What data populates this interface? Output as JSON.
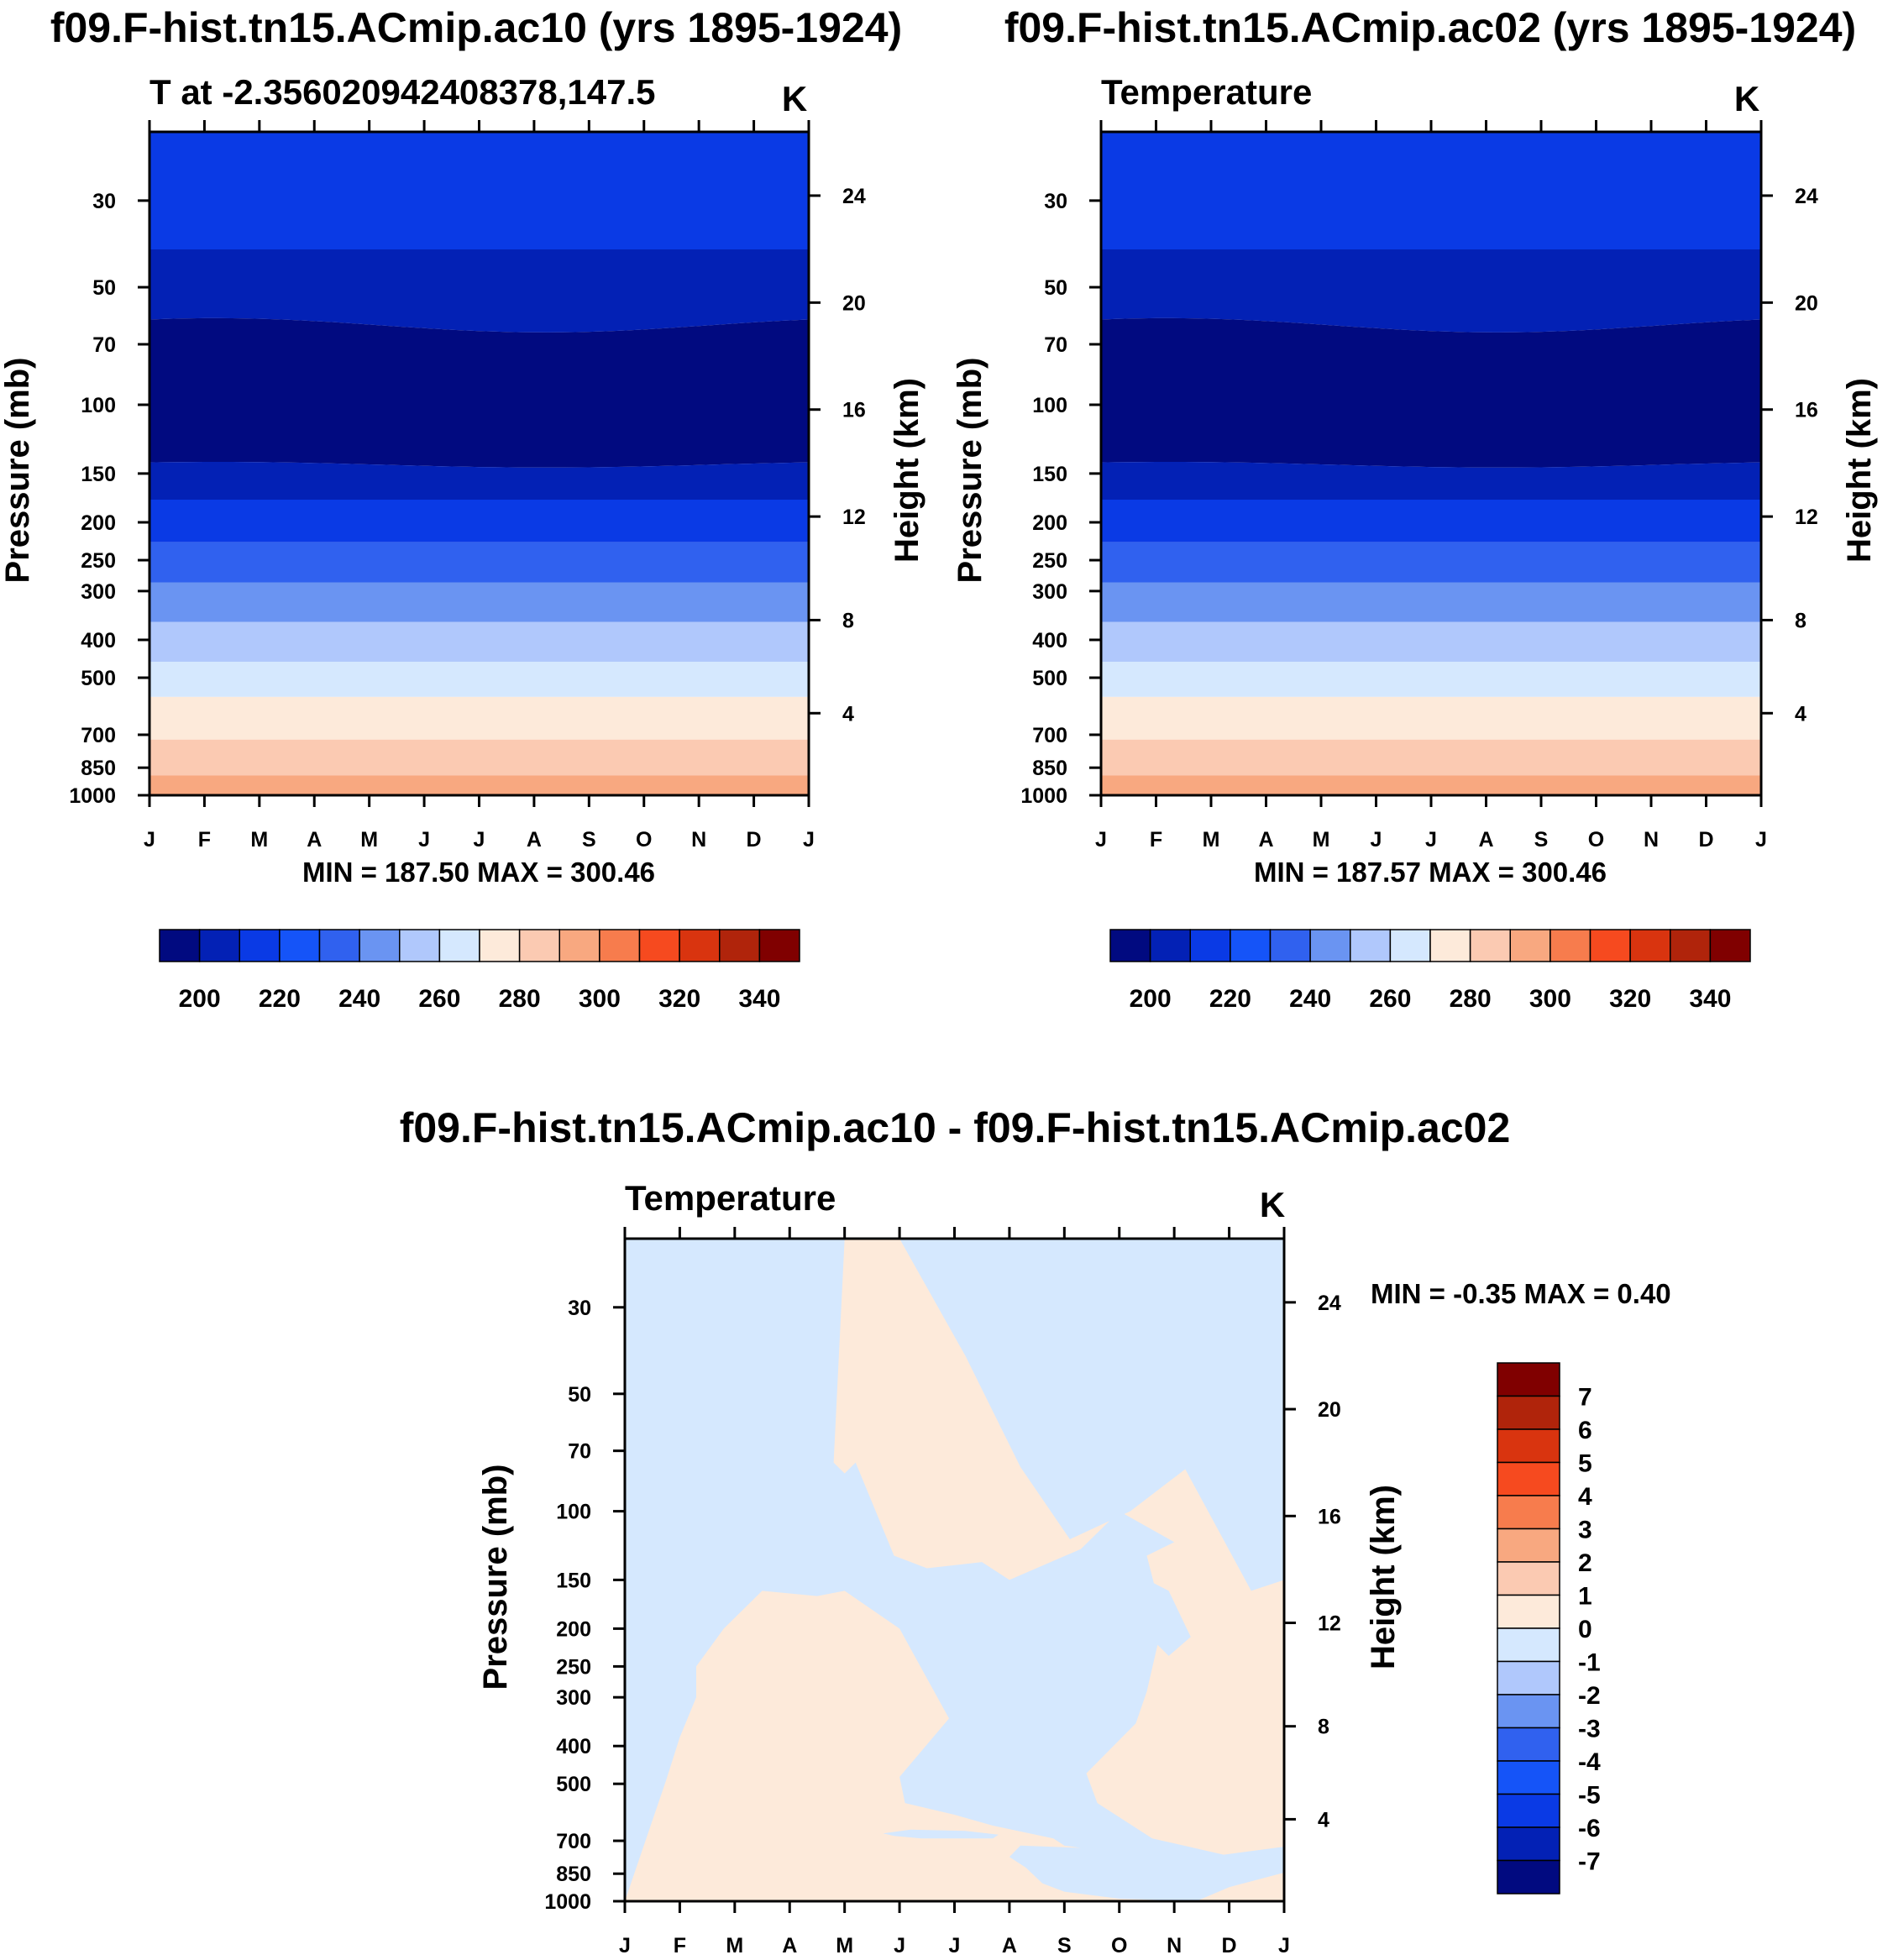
{
  "chart_data": [
    {
      "type": "heatmap",
      "panel": "top-left",
      "title": "f09.F-hist.tn15.ACmip.ac10 (yrs 1895-1924)",
      "subtitle": "T at -2.356020942408378,147.5",
      "units": "K",
      "xlabel": "",
      "ylabel": "Pressure (mb)",
      "y2label": "Height (km)",
      "x_ticks": [
        "J",
        "F",
        "M",
        "A",
        "M",
        "J",
        "J",
        "A",
        "S",
        "O",
        "N",
        "D",
        "J"
      ],
      "y_ticks": [
        "30",
        "50",
        "70",
        "100",
        "150",
        "200",
        "250",
        "300",
        "400",
        "500",
        "700",
        "850",
        "1000"
      ],
      "y_tick_values": [
        30,
        50,
        70,
        100,
        150,
        200,
        250,
        300,
        400,
        500,
        700,
        850,
        1000
      ],
      "y2_ticks": [
        "24",
        "20",
        "16",
        "12",
        "8",
        "4"
      ],
      "y2_tick_values": [
        24,
        20,
        16,
        12,
        8,
        4
      ],
      "ylim": [
        20,
        1000
      ],
      "stats": "MIN = 187.50 MAX = 300.46",
      "levels_mb": [
        20,
        40,
        60,
        140,
        175,
        225,
        285,
        360,
        455,
        560,
        720,
        890,
        1000
      ],
      "band_colors": [
        "#0a3ae5",
        "#0321b5",
        "#010a80",
        "#0321b5",
        "#0a3ae5",
        "#3061ef",
        "#6a94f2",
        "#b0c8fc",
        "#d5e8fe",
        "#fdeada",
        "#fbcab2",
        "#f8a880",
        "#ffffff"
      ],
      "boundary_mod": [
        0,
        0,
        1,
        0.4,
        0,
        0,
        0,
        0,
        0,
        0,
        0,
        0,
        0
      ]
    },
    {
      "type": "heatmap",
      "panel": "top-right",
      "title": "f09.F-hist.tn15.ACmip.ac02 (yrs 1895-1924)",
      "subtitle": "Temperature",
      "units": "K",
      "xlabel": "",
      "ylabel": "Pressure (mb)",
      "y2label": "Height (km)",
      "x_ticks": [
        "J",
        "F",
        "M",
        "A",
        "M",
        "J",
        "J",
        "A",
        "S",
        "O",
        "N",
        "D",
        "J"
      ],
      "y_ticks": [
        "30",
        "50",
        "70",
        "100",
        "150",
        "200",
        "250",
        "300",
        "400",
        "500",
        "700",
        "850",
        "1000"
      ],
      "y_tick_values": [
        30,
        50,
        70,
        100,
        150,
        200,
        250,
        300,
        400,
        500,
        700,
        850,
        1000
      ],
      "y2_ticks": [
        "24",
        "20",
        "16",
        "12",
        "8",
        "4"
      ],
      "y2_tick_values": [
        24,
        20,
        16,
        12,
        8,
        4
      ],
      "ylim": [
        20,
        1000
      ],
      "stats": "MIN = 187.57 MAX = 300.46",
      "levels_mb": [
        20,
        40,
        60,
        140,
        175,
        225,
        285,
        360,
        455,
        560,
        720,
        890,
        1000
      ],
      "band_colors": [
        "#0a3ae5",
        "#0321b5",
        "#010a80",
        "#0321b5",
        "#0a3ae5",
        "#3061ef",
        "#6a94f2",
        "#b0c8fc",
        "#d5e8fe",
        "#fdeada",
        "#fbcab2",
        "#f8a880",
        "#ffffff"
      ],
      "boundary_mod": [
        0,
        0,
        1,
        0.4,
        0,
        0,
        0,
        0,
        0,
        0,
        0,
        0,
        0
      ]
    },
    {
      "type": "heatmap",
      "panel": "bottom",
      "title": "f09.F-hist.tn15.ACmip.ac10 - f09.F-hist.tn15.ACmip.ac02",
      "subtitle": "Temperature",
      "units": "K",
      "xlabel": "",
      "ylabel": "Pressure (mb)",
      "y2label": "Height (km)",
      "x_ticks": [
        "J",
        "F",
        "M",
        "A",
        "M",
        "J",
        "J",
        "A",
        "S",
        "O",
        "N",
        "D",
        "J"
      ],
      "y_ticks": [
        "30",
        "50",
        "70",
        "100",
        "150",
        "200",
        "250",
        "300",
        "400",
        "500",
        "700",
        "850",
        "1000"
      ],
      "y_tick_values": [
        30,
        50,
        70,
        100,
        150,
        200,
        250,
        300,
        400,
        500,
        700,
        850,
        1000
      ],
      "y2_ticks": [
        "24",
        "20",
        "16",
        "12",
        "8",
        "4"
      ],
      "y2_tick_values": [
        24,
        20,
        16,
        12,
        8,
        4
      ],
      "ylim": [
        20,
        1000
      ],
      "stats": "MIN =  -0.35 MAX =   0.40",
      "background_value_class": "0 to 1",
      "diff_regions": [
        {
          "value_class": "-1 to 0",
          "months": [
            0,
            0.75,
            1,
            1.3,
            1.3,
            1.8,
            2.5,
            3.5,
            4,
            5,
            5.9,
            5,
            5.1,
            6,
            6.7,
            7.8,
            8,
            8.3,
            7.2,
            7,
            7.3,
            7.6,
            8,
            9,
            10.4,
            11,
            12,
            12,
            10.9,
            9.6,
            8.6,
            8.4,
            9.3,
            9.5,
            9.8,
            9.5,
            10,
            9,
            8.3,
            7,
            6.5,
            5.5,
            4.9,
            4.2,
            4,
            3.8,
            4,
            5,
            6.2,
            7.2,
            8.1,
            9.2,
            10.2,
            11.4,
            12,
            12,
            0
          ],
          "pressure_mb": [
            1000,
            490,
            380,
            300,
            250,
            200,
            160,
            165,
            160,
            200,
            340,
            480,
            560,
            600,
            640,
            690,
            720,
            730,
            720,
            770,
            820,
            900,
            945,
            985,
            1000,
            920,
            845,
            725,
            760,
            690,
            560,
            470,
            350,
            290,
            190,
            130,
            120,
            100,
            125,
            150,
            135,
            140,
            130,
            75,
            80,
            75,
            20,
            20,
            40,
            77,
            118,
            100,
            78,
            160,
            150,
            20,
            20
          ]
        },
        {
          "value_class": "-1 to 0",
          "months": [
            8.2,
            9.1,
            9.9,
            10.3,
            9.9,
            9.4,
            8.5
          ],
          "pressure_mb": [
            135,
            140,
            160,
            210,
            235,
            200,
            155
          ]
        },
        {
          "value_class": "-1 to 0",
          "months": [
            4.7,
            5.2,
            6.2,
            6.8,
            6.7,
            5.4,
            4.9
          ],
          "pressure_mb": [
            670,
            655,
            660,
            675,
            690,
            690,
            680
          ]
        }
      ]
    }
  ],
  "colorbar_top": {
    "colors": [
      "#010a80",
      "#0321b5",
      "#0a3ae5",
      "#1554f8",
      "#3061ef",
      "#6a94f2",
      "#b0c8fc",
      "#d5e8fe",
      "#fdeada",
      "#fbcab2",
      "#f8a880",
      "#f77c4d",
      "#f64a1f",
      "#d9340f",
      "#b0240b",
      "#800000"
    ],
    "labels": [
      "200",
      "220",
      "240",
      "260",
      "280",
      "300",
      "320",
      "340"
    ]
  },
  "colorbar_bottom": {
    "colors": [
      "#800000",
      "#b0240b",
      "#d9340f",
      "#f64a1f",
      "#f77c4d",
      "#f8a880",
      "#fbcab2",
      "#fdeada",
      "#d5e8fe",
      "#b0c8fc",
      "#6a94f2",
      "#3061ef",
      "#1554f8",
      "#0a3ae5",
      "#0321b5",
      "#010a80"
    ],
    "labels": [
      "7",
      "6",
      "5",
      "4",
      "3",
      "2",
      "1",
      "0",
      "-1",
      "-2",
      "-3",
      "-4",
      "-5",
      "-6",
      "-7"
    ]
  }
}
